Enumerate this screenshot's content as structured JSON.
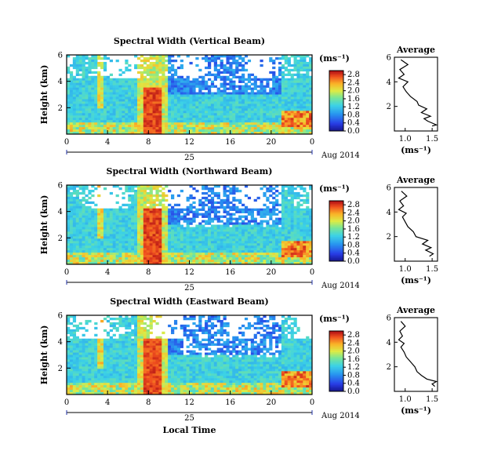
{
  "chart_data": [
    {
      "type": "heatmap",
      "title": "Spectral Width (Vertical Beam)",
      "xlabel": "",
      "ylabel": "Height (km)",
      "x_ticks": [
        "0",
        "4",
        "8",
        "12",
        "16",
        "20",
        "0"
      ],
      "x_range": [
        0,
        24
      ],
      "y_ticks": [
        "2",
        "4",
        "6"
      ],
      "y_range": [
        0,
        6
      ],
      "date_label": "Aug 2014",
      "day_label": "25",
      "colorbar": {
        "unit": "(ms⁻¹)",
        "ticks": [
          "0.0",
          "0.4",
          "0.8",
          "1.2",
          "1.6",
          "2.0",
          "2.4",
          "2.8"
        ],
        "range": [
          0,
          3.0
        ]
      },
      "profile": {
        "title": "Average",
        "xlabel": "(ms⁻¹)",
        "x_ticks": [
          "1.0",
          "1.5"
        ],
        "x_range": [
          0.8,
          1.6
        ],
        "y_ticks": [
          "2",
          "4",
          "6"
        ],
        "points": [
          [
            1.5,
            0.4
          ],
          [
            1.58,
            0.5
          ],
          [
            1.42,
            0.8
          ],
          [
            1.35,
            1.0
          ],
          [
            1.47,
            1.2
          ],
          [
            1.3,
            1.5
          ],
          [
            1.4,
            1.8
          ],
          [
            1.25,
            2.1
          ],
          [
            1.22,
            2.4
          ],
          [
            1.1,
            2.8
          ],
          [
            1.02,
            3.2
          ],
          [
            0.96,
            3.6
          ],
          [
            1.05,
            4.0
          ],
          [
            0.88,
            4.3
          ],
          [
            0.98,
            4.6
          ],
          [
            0.9,
            5.0
          ],
          [
            1.05,
            5.4
          ],
          [
            0.92,
            5.8
          ]
        ]
      }
    },
    {
      "type": "heatmap",
      "title": "Spectral Width (Northward Beam)",
      "xlabel": "",
      "ylabel": "Height (km)",
      "x_ticks": [
        "0",
        "4",
        "8",
        "12",
        "16",
        "20",
        "0"
      ],
      "x_range": [
        0,
        24
      ],
      "y_ticks": [
        "2",
        "4",
        "6"
      ],
      "y_range": [
        0,
        6
      ],
      "date_label": "Aug 2014",
      "day_label": "25",
      "colorbar": {
        "unit": "(ms⁻¹)",
        "ticks": [
          "0.0",
          "0.4",
          "0.8",
          "1.2",
          "1.6",
          "2.0",
          "2.4",
          "2.8"
        ],
        "range": [
          0,
          3.0
        ]
      },
      "profile": {
        "title": "Average",
        "xlabel": "(ms⁻¹)",
        "x_ticks": [
          "1.0",
          "1.5"
        ],
        "x_range": [
          0.8,
          1.6
        ],
        "y_ticks": [
          "2",
          "4",
          "6"
        ],
        "points": [
          [
            1.45,
            0.4
          ],
          [
            1.52,
            0.6
          ],
          [
            1.38,
            0.9
          ],
          [
            1.48,
            1.1
          ],
          [
            1.32,
            1.4
          ],
          [
            1.42,
            1.7
          ],
          [
            1.2,
            2.0
          ],
          [
            1.15,
            2.4
          ],
          [
            1.05,
            2.8
          ],
          [
            1.0,
            3.2
          ],
          [
            0.95,
            3.6
          ],
          [
            1.02,
            3.9
          ],
          [
            0.88,
            4.2
          ],
          [
            0.97,
            4.5
          ],
          [
            0.9,
            4.9
          ],
          [
            1.03,
            5.3
          ],
          [
            0.93,
            5.7
          ]
        ]
      }
    },
    {
      "type": "heatmap",
      "title": "Spectral Width (Eastward Beam)",
      "xlabel": "Local Time",
      "ylabel": "Height (km)",
      "x_ticks": [
        "0",
        "4",
        "8",
        "12",
        "16",
        "20",
        "0"
      ],
      "x_range": [
        0,
        24
      ],
      "y_ticks": [
        "2",
        "4",
        "6"
      ],
      "y_range": [
        0,
        6
      ],
      "date_label": "Aug 2014",
      "day_label": "25",
      "colorbar": {
        "unit": "(ms⁻¹)",
        "ticks": [
          "0.0",
          "0.4",
          "0.8",
          "1.2",
          "1.6",
          "2.0",
          "2.4",
          "2.8"
        ],
        "range": [
          0,
          3.0
        ]
      },
      "profile": {
        "title": "Average",
        "xlabel": "(ms⁻¹)",
        "x_ticks": [
          "1.0",
          "1.5"
        ],
        "x_range": [
          0.8,
          1.6
        ],
        "y_ticks": [
          "2",
          "4",
          "6"
        ],
        "points": [
          [
            1.55,
            0.4
          ],
          [
            1.5,
            0.6
          ],
          [
            1.58,
            0.8
          ],
          [
            1.4,
            1.0
          ],
          [
            1.3,
            1.3
          ],
          [
            1.22,
            1.6
          ],
          [
            1.18,
            2.0
          ],
          [
            1.1,
            2.4
          ],
          [
            1.02,
            2.8
          ],
          [
            0.98,
            3.2
          ],
          [
            0.92,
            3.6
          ],
          [
            0.98,
            3.9
          ],
          [
            0.88,
            4.2
          ],
          [
            0.95,
            4.5
          ],
          [
            0.9,
            4.9
          ],
          [
            1.0,
            5.3
          ],
          [
            0.92,
            5.7
          ]
        ]
      }
    }
  ]
}
